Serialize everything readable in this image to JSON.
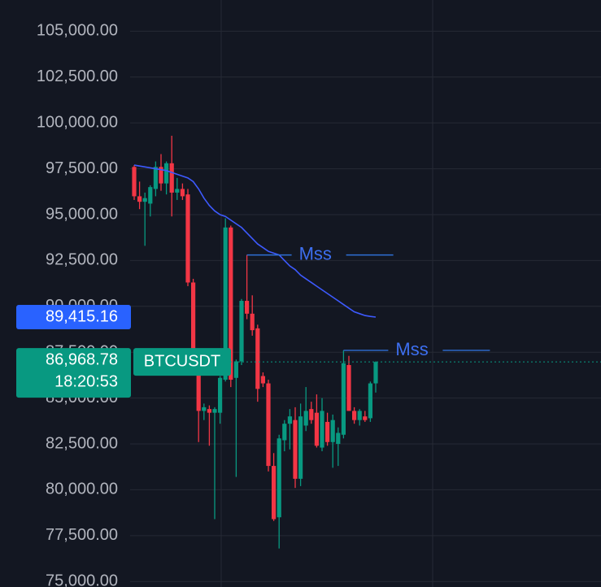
{
  "chart_data": {
    "type": "candlestick",
    "symbol": "BTCUSDT",
    "ylim": [
      74700,
      106700
    ],
    "yticks": [
      {
        "value": 75000,
        "label": "75,000.00"
      },
      {
        "value": 77500,
        "label": "77,500.00"
      },
      {
        "value": 80000,
        "label": "80,000.00"
      },
      {
        "value": 82500,
        "label": "82,500.00"
      },
      {
        "value": 85000,
        "label": "85,000.00"
      },
      {
        "value": 87500,
        "label": "87,500.00"
      },
      {
        "value": 90000,
        "label": "90,000.00"
      },
      {
        "value": 92500,
        "label": "92,500.00"
      },
      {
        "value": 95000,
        "label": "95,000.00"
      },
      {
        "value": 97500,
        "label": "97,500.00"
      },
      {
        "value": 100000,
        "label": "100,000.00"
      },
      {
        "value": 102500,
        "label": "102,500.00"
      },
      {
        "value": 105000,
        "label": "105,000.00"
      }
    ],
    "grid": true,
    "up_color": "#089981",
    "down_color": "#f23645",
    "open": [
      97600,
      96000,
      95700,
      95600,
      96400,
      97600,
      96700,
      97800,
      96200,
      96400,
      96100,
      91300,
      86900,
      84300,
      84400,
      84200,
      84200,
      86000,
      94300,
      86100,
      87000,
      90300,
      89600,
      88800,
      86200,
      85800,
      81300,
      78500,
      82700,
      83600,
      83800,
      80600,
      83500,
      84400,
      84200,
      82300,
      83700,
      82600,
      82500,
      83000,
      86800,
      84300,
      83800,
      84000,
      83900,
      85800
    ],
    "high": [
      97700,
      96800,
      96200,
      96600,
      97900,
      98300,
      97900,
      99300,
      97000,
      96700,
      96400,
      91500,
      87000,
      84700,
      84600,
      84500,
      86200,
      94800,
      94400,
      87100,
      90400,
      92800,
      90600,
      89000,
      86400,
      86000,
      82000,
      83000,
      83800,
      84400,
      84500,
      84700,
      85600,
      84800,
      85200,
      85000,
      84200,
      84100,
      83400,
      87600,
      87300,
      84500,
      84400,
      84300,
      85900,
      87000
    ],
    "low": [
      95800,
      95300,
      93300,
      94900,
      96000,
      96300,
      96100,
      94900,
      95800,
      95800,
      91100,
      86700,
      82600,
      83800,
      82400,
      78400,
      83600,
      85900,
      85600,
      80700,
      86800,
      89300,
      88400,
      84800,
      85600,
      81000,
      78300,
      76800,
      82100,
      82200,
      80100,
      80200,
      83200,
      83600,
      82300,
      82100,
      82400,
      81200,
      81300,
      82800,
      84300,
      83600,
      83500,
      83700,
      83700,
      85300
    ],
    "close": [
      96000,
      95700,
      95900,
      96500,
      97600,
      96700,
      97800,
      96200,
      96400,
      96000,
      91300,
      86800,
      84300,
      84500,
      84200,
      84400,
      86100,
      94300,
      86000,
      87000,
      90300,
      89600,
      88700,
      85500,
      85800,
      81300,
      78400,
      82800,
      83600,
      84000,
      80600,
      84000,
      84300,
      83800,
      82400,
      84300,
      82600,
      83800,
      83100,
      86900,
      84300,
      83800,
      84300,
      83800,
      85800,
      86968.78
    ],
    "ema": {
      "color": "#3d5afe",
      "values": [
        97700,
        97650,
        97600,
        97550,
        97500,
        97450,
        97400,
        97300,
        97200,
        97100,
        97000,
        96800,
        96400,
        95900,
        95500,
        95200,
        95000,
        94900,
        94700,
        94500,
        94300,
        94000,
        93700,
        93400,
        93200,
        93000,
        92900,
        92800,
        92500,
        92200,
        92000,
        91700,
        91500,
        91300,
        91100,
        90900,
        90700,
        90500,
        90300,
        90100,
        89900,
        89700,
        89600,
        89500,
        89450,
        89415.16
      ]
    },
    "ema_last": {
      "value": 89415.16,
      "label": "89,415.16"
    },
    "last_price": {
      "value": 86968.78,
      "label": "86,968.78"
    },
    "countdown": "18:20:53",
    "annotations": [
      {
        "text": "Mss",
        "value": 92800
      },
      {
        "text": "Mss",
        "value": 87600
      }
    ]
  }
}
